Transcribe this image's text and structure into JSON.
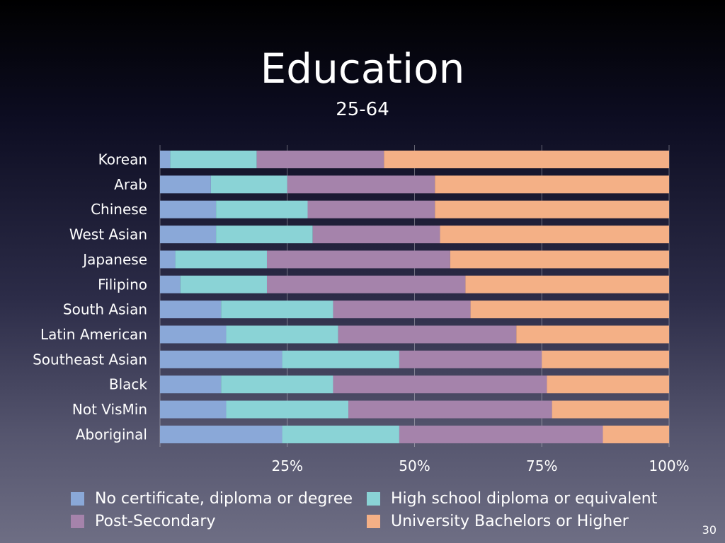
{
  "slide": {
    "title": "Education",
    "subtitle": "25-64",
    "page_number": "30"
  },
  "chart_data": {
    "type": "bar",
    "orientation": "horizontal",
    "stacked": true,
    "normalized": true,
    "title": "Education",
    "subtitle": "25-64",
    "xlim": [
      0,
      100
    ],
    "x_ticks": [
      "25%",
      "50%",
      "75%",
      "100%"
    ],
    "x_tick_values": [
      25,
      50,
      75,
      100
    ],
    "grid": true,
    "legend_position": "bottom",
    "categories": [
      "Korean",
      "Arab",
      "Chinese",
      "West Asian",
      "Japanese",
      "Filipino",
      "South Asian",
      "Latin American",
      "Southeast Asian",
      "Black",
      "Not VisMin",
      "Aboriginal"
    ],
    "series": [
      {
        "name": "No certificate, diploma or degree",
        "color": "#8aa8d8",
        "values": [
          2,
          10,
          11,
          11,
          3,
          4,
          12,
          13,
          24,
          12,
          13,
          24
        ]
      },
      {
        "name": "High school diploma or equivalent",
        "color": "#8ad3d6",
        "values": [
          17,
          15,
          18,
          19,
          18,
          17,
          22,
          22,
          23,
          22,
          24,
          23
        ]
      },
      {
        "name": "Post-Secondary",
        "color": "#a583ab",
        "values": [
          25,
          29,
          25,
          25,
          36,
          39,
          27,
          35,
          28,
          42,
          40,
          40
        ]
      },
      {
        "name": "University Bachelors or Higher",
        "color": "#f4b086",
        "values": [
          56,
          46,
          46,
          45,
          43,
          40,
          39,
          30,
          25,
          24,
          23,
          13
        ]
      }
    ]
  }
}
